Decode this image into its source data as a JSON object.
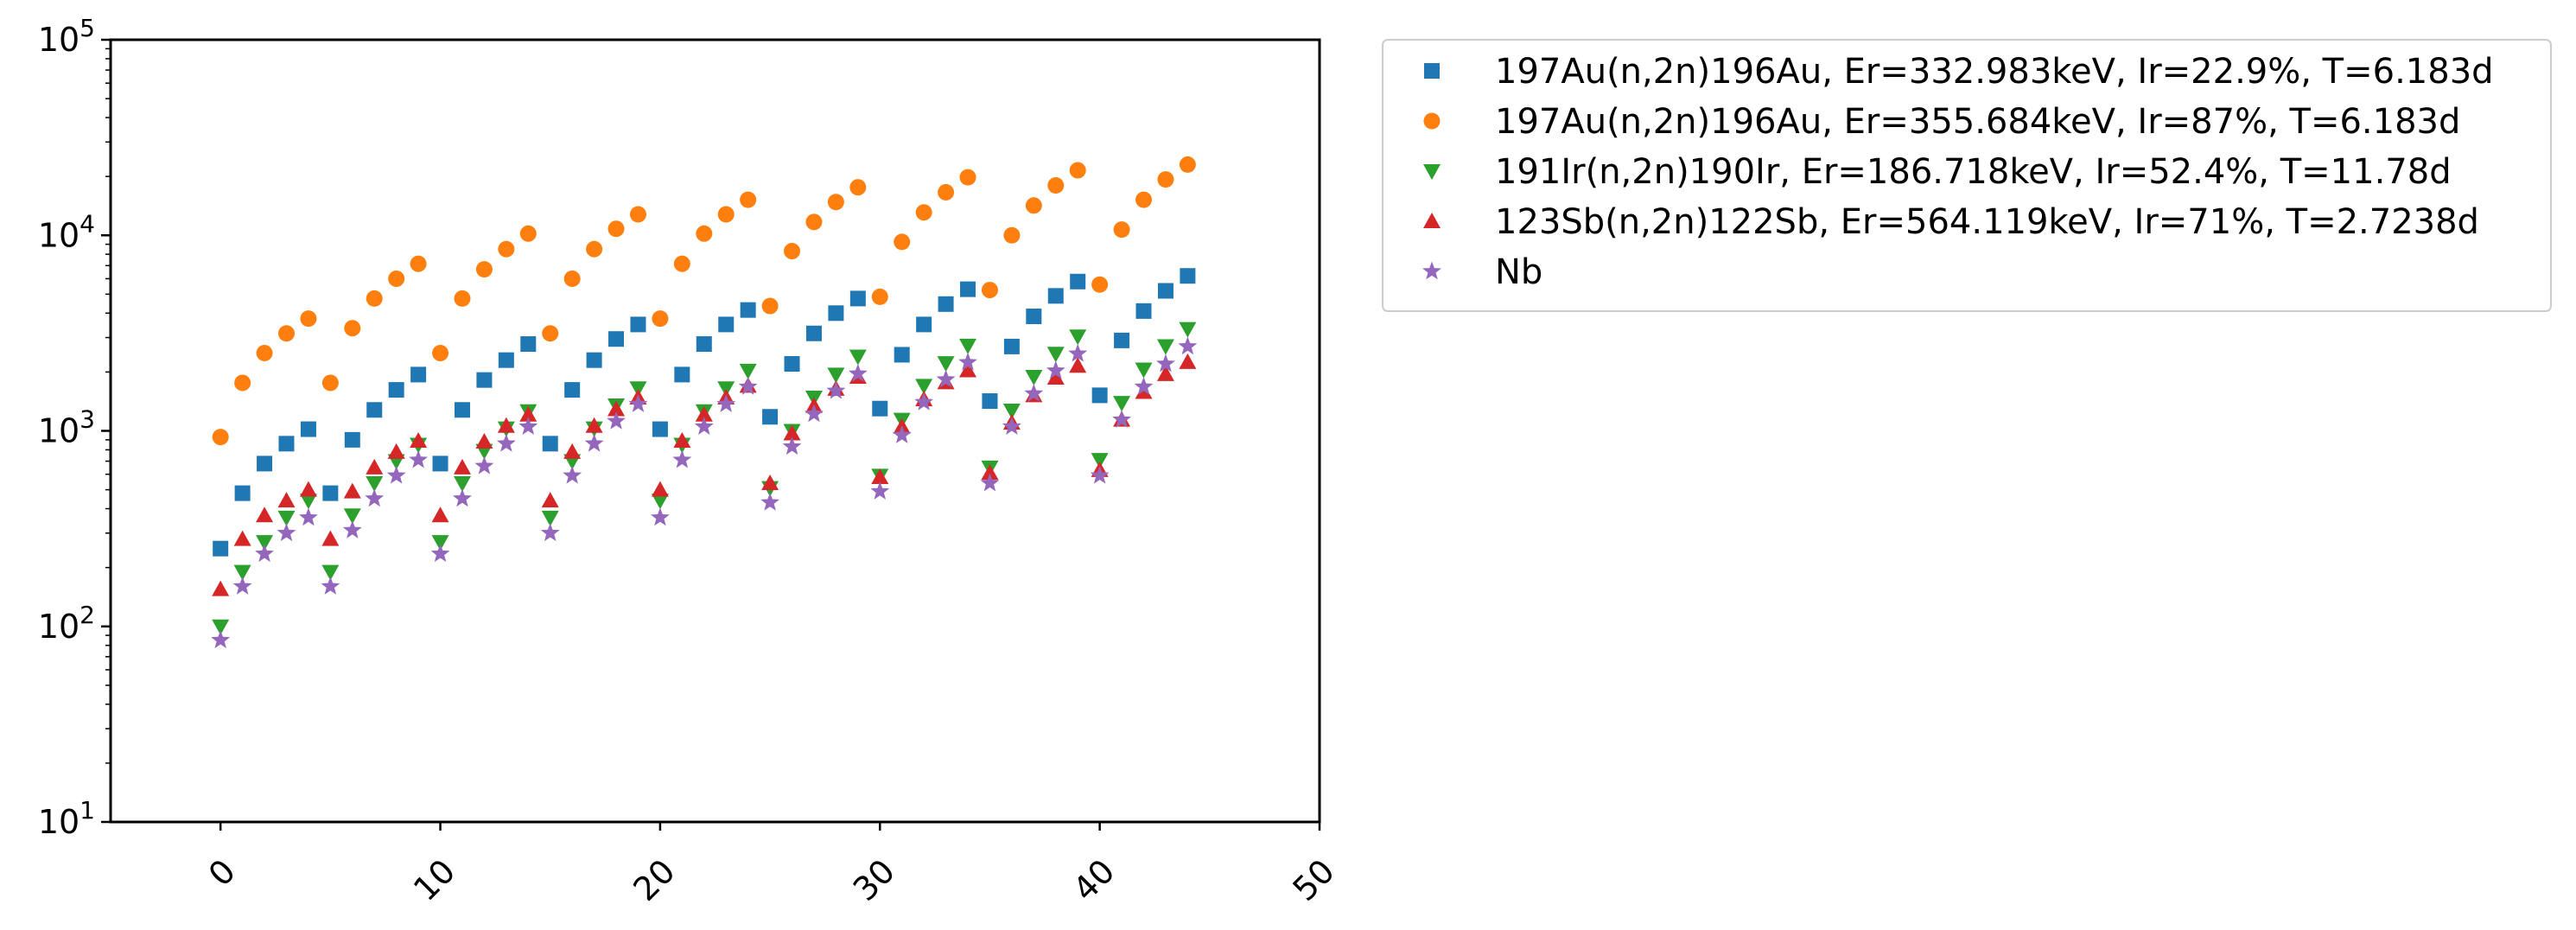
{
  "chart_data": {
    "type": "scatter",
    "title": "",
    "xlabel": "",
    "ylabel": "",
    "xlim": [
      -5,
      50
    ],
    "ylim": [
      10,
      100000
    ],
    "yscale": "log",
    "grid": false,
    "legend_position": "outside-right-top",
    "x_ticks": [
      {
        "value": 0,
        "label": "0"
      },
      {
        "value": 10,
        "label": "10"
      },
      {
        "value": 20,
        "label": "20"
      },
      {
        "value": 30,
        "label": "30"
      },
      {
        "value": 40,
        "label": "40"
      },
      {
        "value": 50,
        "label": "50"
      }
    ],
    "y_ticks": [
      {
        "value": 10,
        "base": "10",
        "exp": "1"
      },
      {
        "value": 100,
        "base": "10",
        "exp": "2"
      },
      {
        "value": 1000,
        "base": "10",
        "exp": "3"
      },
      {
        "value": 10000,
        "base": "10",
        "exp": "4"
      },
      {
        "value": 100000,
        "base": "10",
        "exp": "5"
      }
    ],
    "x": [
      0,
      1,
      2,
      3,
      4,
      5,
      6,
      7,
      8,
      9,
      10,
      11,
      12,
      13,
      14,
      15,
      16,
      17,
      18,
      19,
      20,
      21,
      22,
      23,
      24,
      25,
      26,
      27,
      28,
      29,
      30,
      31,
      32,
      33,
      34,
      35,
      36,
      37,
      38,
      39,
      40,
      41,
      42,
      43,
      44
    ],
    "series": [
      {
        "name": "197Au(n,2n)196Au, Er=332.983keV, Ir=22.9%, T=6.183d",
        "marker": "square",
        "color": "#1f77b4",
        "values": [
          250,
          480,
          680,
          860,
          1020,
          480,
          900,
          1280,
          1620,
          1940,
          680,
          1280,
          1820,
          2300,
          2780,
          860,
          1620,
          2300,
          2950,
          3500,
          1020,
          1940,
          2780,
          3500,
          4150,
          1180,
          2200,
          3150,
          4000,
          4750,
          1300,
          2450,
          3500,
          4450,
          5300,
          1420,
          2700,
          3850,
          4900,
          5800,
          1520,
          2900,
          4100,
          5200,
          6200
        ]
      },
      {
        "name": "197Au(n,2n)196Au, Er=355.684keV, Ir=87%, T=6.183d",
        "marker": "circle",
        "color": "#ff7f0e",
        "values": [
          930,
          1760,
          2500,
          3150,
          3750,
          1760,
          3350,
          4750,
          6000,
          7150,
          2500,
          4750,
          6700,
          8500,
          10200,
          3150,
          6000,
          8500,
          10800,
          12800,
          3750,
          7150,
          10200,
          12800,
          15200,
          4350,
          8300,
          11700,
          14800,
          17600,
          4850,
          9250,
          13100,
          16600,
          19800,
          5250,
          10000,
          14200,
          18000,
          21500,
          5600,
          10700,
          15200,
          19300,
          23000
        ]
      },
      {
        "name": "191Ir(n,2n)190Ir, Er=186.718keV, Ir=52.4%, T=11.78d",
        "marker": "triangle-down",
        "color": "#2ca02c",
        "values": [
          100,
          190,
          270,
          360,
          440,
          190,
          370,
          540,
          700,
          850,
          270,
          540,
          790,
          1030,
          1260,
          360,
          700,
          1030,
          1350,
          1650,
          440,
          850,
          1260,
          1650,
          2030,
          510,
          1000,
          1480,
          1940,
          2400,
          590,
          1140,
          1700,
          2220,
          2730,
          650,
          1270,
          1890,
          2480,
          3040,
          710,
          1390,
          2060,
          2710,
          3320
        ]
      },
      {
        "name": "123Sb(n,2n)122Sb, Er=564.119keV, Ir=71%, T=2.7238d",
        "marker": "triangle-up",
        "color": "#d62728",
        "values": [
          155,
          280,
          370,
          440,
          500,
          280,
          490,
          650,
          780,
          890,
          370,
          650,
          880,
          1060,
          1210,
          440,
          780,
          1060,
          1290,
          1480,
          500,
          890,
          1210,
          1480,
          1700,
          540,
          970,
          1340,
          1640,
          1890,
          580,
          1050,
          1450,
          1770,
          2040,
          610,
          1100,
          1520,
          1870,
          2150,
          630,
          1140,
          1580,
          1950,
          2250
        ]
      },
      {
        "name": "Nb",
        "marker": "star",
        "color": "#9467bd",
        "values": [
          85,
          160,
          235,
          300,
          360,
          160,
          310,
          450,
          590,
          710,
          235,
          450,
          660,
          860,
          1050,
          300,
          590,
          860,
          1120,
          1370,
          360,
          710,
          1050,
          1370,
          1680,
          430,
          830,
          1220,
          1600,
          1960,
          490,
          950,
          1400,
          1830,
          2240,
          540,
          1050,
          1550,
          2030,
          2480,
          590,
          1140,
          1680,
          2200,
          2700
        ]
      }
    ]
  }
}
